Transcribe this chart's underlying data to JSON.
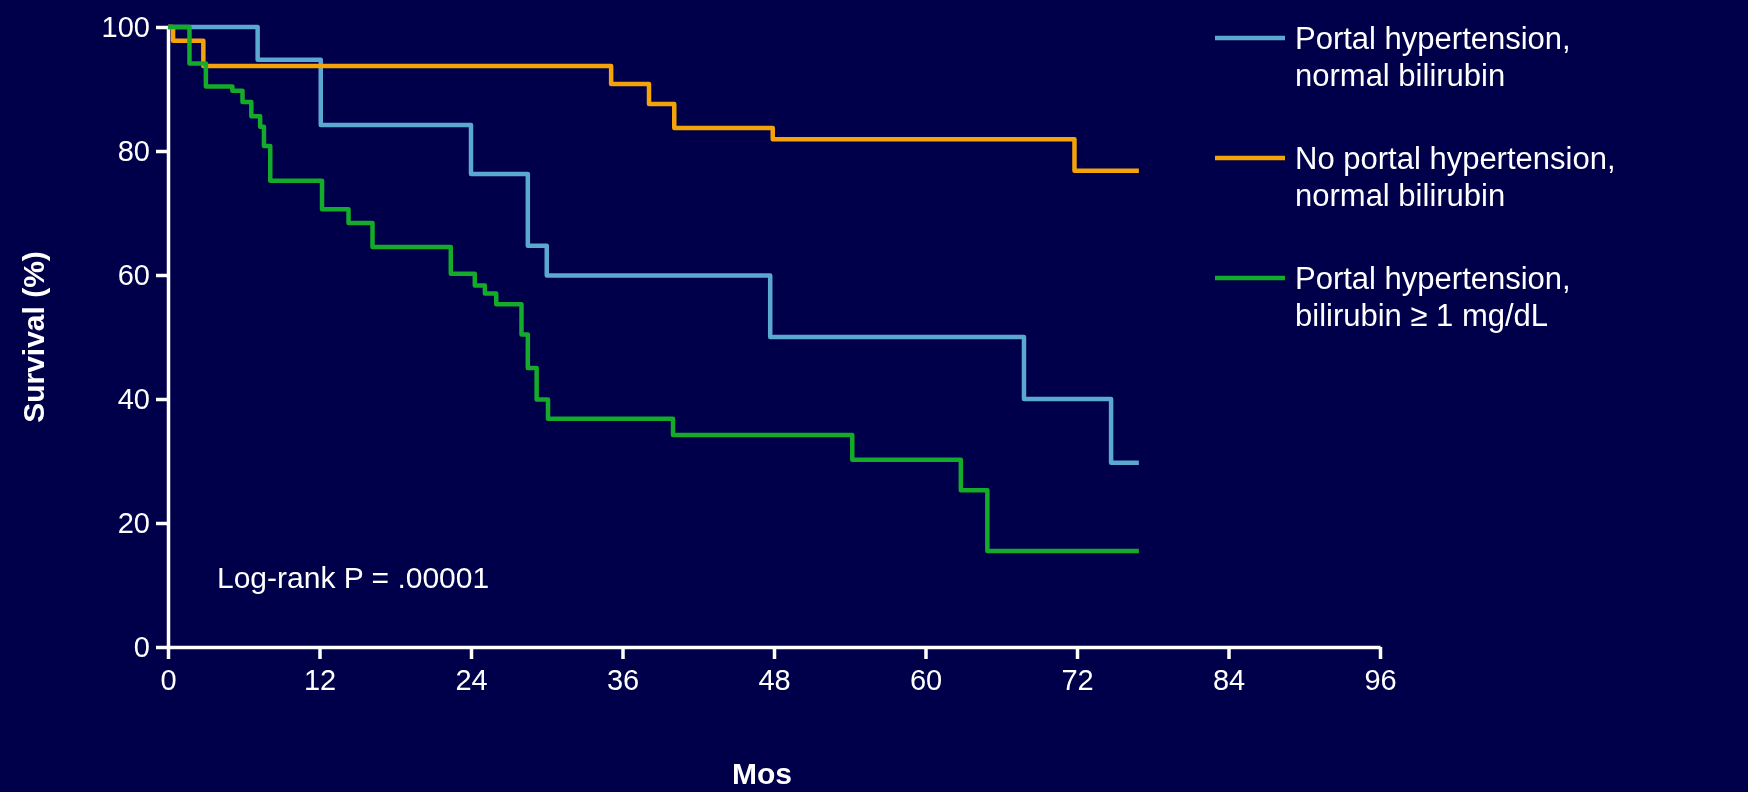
{
  "chart_data": {
    "type": "step",
    "xlabel": "Mos",
    "ylabel": "Survival (%)",
    "xlim": [
      0,
      96
    ],
    "xticks": [
      0,
      12,
      24,
      36,
      48,
      60,
      72,
      84,
      96
    ],
    "ylim": [
      0,
      100
    ],
    "yticks": [
      0,
      20,
      40,
      60,
      80,
      100
    ],
    "grid": false,
    "legend": "top right",
    "marker": "none",
    "line_style": "solid",
    "annotations": [
      "Log-rank P = .00001"
    ],
    "series": [
      {
        "name": "Portal hypertension,\nnormal bilirubin",
        "color": "#5ba8d0",
        "x": [
          0,
          7.1,
          12.1,
          24,
          28.5,
          30,
          47.7,
          67.8,
          74.7,
          76.9
        ],
        "values": [
          100,
          94.7,
          84.2,
          76.3,
          64.7,
          59.9,
          50,
          40,
          29.7,
          29.7
        ]
      },
      {
        "name": "No portal hypertension,\nnormal bilirubin",
        "color": "#f5a30a",
        "x": [
          0,
          0.4,
          2.8,
          35.1,
          38.1,
          40.1,
          47.9,
          71.8,
          76.9
        ],
        "values": [
          100,
          97.8,
          93.7,
          90.8,
          87.6,
          83.7,
          81.9,
          76.8,
          76.8
        ]
      },
      {
        "name": "Portal hypertension,\nbilirubin ≥ 1 mg/dL",
        "color": "#14aa2a",
        "x": [
          0,
          1.7,
          3,
          5.1,
          5.9,
          6.6,
          7.3,
          7.6,
          8.1,
          12.2,
          14.3,
          16.2,
          22.4,
          24.3,
          25.1,
          26,
          28,
          28.5,
          29.2,
          30.1,
          40,
          54.2,
          62.8,
          64.9,
          76.9
        ],
        "values": [
          100,
          94.1,
          90.4,
          89.7,
          87.9,
          85.6,
          83.9,
          80.8,
          75.2,
          70.6,
          68.4,
          64.5,
          60.2,
          58.3,
          57,
          55.3,
          50.4,
          45,
          39.9,
          36.8,
          34.2,
          30.2,
          25.3,
          15.5,
          15.5
        ]
      }
    ]
  }
}
